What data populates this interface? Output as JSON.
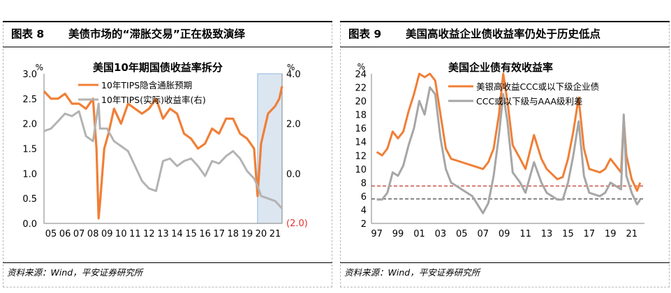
{
  "left": {
    "figure_no": "图表 8",
    "figure_title": "美债市场的“滞胀交易”正在极致演绎",
    "source": "资料来源：Wind，平安证券研究所",
    "chart_data": {
      "type": "line",
      "title": "美国10年期国债收益率拆分",
      "y_unit_left": "%",
      "y_unit_right": "%",
      "ylim_left": [
        0,
        3.0
      ],
      "ylim_right": [
        -2.0,
        4.0
      ],
      "y_ticks_left": [
        "0.0",
        "0.5",
        "1.0",
        "1.5",
        "2.0",
        "2.5",
        "3.0"
      ],
      "y_ticks_right": [
        "(2.0)",
        "0.0",
        "2.0",
        "4.0"
      ],
      "x_tick_labels": [
        "05",
        "06",
        "07",
        "08",
        "09",
        "10",
        "11",
        "12",
        "13",
        "14",
        "15",
        "16",
        "17",
        "18",
        "19",
        "20",
        "21"
      ],
      "legend": "top-center",
      "highlight_span": [
        2020.25,
        2022.0
      ],
      "series": [
        {
          "name": "10年TIPS隐含通胀预期",
          "axis": "left",
          "color": "#f07f36",
          "x": [
            2005.0,
            2005.5,
            2006.0,
            2006.5,
            2007.0,
            2007.5,
            2008.0,
            2008.5,
            2008.75,
            2008.9,
            2009.0,
            2009.3,
            2009.6,
            2010.0,
            2010.5,
            2011.0,
            2011.5,
            2012.0,
            2012.5,
            2013.0,
            2013.5,
            2014.0,
            2014.5,
            2015.0,
            2015.5,
            2016.0,
            2016.5,
            2017.0,
            2017.5,
            2018.0,
            2018.5,
            2019.0,
            2019.5,
            2020.0,
            2020.25,
            2020.5,
            2021.0,
            2021.5,
            2021.8,
            2022.0
          ],
          "values": [
            2.65,
            2.5,
            2.5,
            2.6,
            2.4,
            2.4,
            2.3,
            2.5,
            1.5,
            0.1,
            0.4,
            1.5,
            1.8,
            2.3,
            2.0,
            2.4,
            2.3,
            2.2,
            2.3,
            2.5,
            2.1,
            2.3,
            2.2,
            1.8,
            1.7,
            1.5,
            1.6,
            1.9,
            1.8,
            2.1,
            2.1,
            1.8,
            1.7,
            1.5,
            0.55,
            1.6,
            2.2,
            2.35,
            2.5,
            2.75
          ]
        },
        {
          "name": "10年TIPS(实际)收益率(右)",
          "axis": "right",
          "color": "#b3b3b3",
          "x": [
            2005.0,
            2005.5,
            2006.0,
            2006.5,
            2007.0,
            2007.5,
            2008.0,
            2008.5,
            2008.9,
            2009.0,
            2009.5,
            2010.0,
            2010.5,
            2011.0,
            2011.5,
            2012.0,
            2012.5,
            2013.0,
            2013.5,
            2014.0,
            2014.5,
            2015.0,
            2015.5,
            2016.0,
            2016.5,
            2017.0,
            2017.5,
            2018.0,
            2018.5,
            2019.0,
            2019.5,
            2020.0,
            2020.25,
            2020.5,
            2021.0,
            2021.5,
            2022.0
          ],
          "values": [
            1.7,
            1.8,
            2.1,
            2.4,
            2.3,
            2.5,
            1.5,
            1.3,
            2.8,
            1.8,
            1.8,
            1.3,
            1.1,
            0.9,
            0.3,
            -0.3,
            -0.6,
            -0.7,
            0.5,
            0.6,
            0.3,
            0.5,
            0.6,
            0.3,
            -0.1,
            0.5,
            0.4,
            0.7,
            0.9,
            0.6,
            0.1,
            -0.2,
            -0.5,
            -0.9,
            -1.0,
            -1.1,
            -1.4
          ]
        }
      ]
    }
  },
  "right": {
    "figure_no": "图表 9",
    "figure_title": "美国高收益企业债收益率仍处于历史低点",
    "source": "资料来源：Wind，平安证券研究所",
    "chart_data": {
      "type": "line",
      "title": "美国企业债有效收益率",
      "y_unit": "%",
      "ylim": [
        2,
        24
      ],
      "y_ticks": [
        "2",
        "4",
        "6",
        "8",
        "10",
        "12",
        "14",
        "16",
        "18",
        "20",
        "22",
        "24"
      ],
      "x_tick_labels": [
        "97",
        "99",
        "01",
        "03",
        "05",
        "07",
        "09",
        "11",
        "13",
        "15",
        "17",
        "19",
        "21"
      ],
      "legend": "top-center",
      "reference_lines": [
        {
          "value": 7.5,
          "color": "#c0392b"
        },
        {
          "value": 5.6,
          "color": "#555555"
        }
      ],
      "series": [
        {
          "name": "美银高收益CCC或以下级企业债",
          "color": "#f07f36",
          "x": [
            1997.0,
            1997.5,
            1998.0,
            1998.5,
            1999.0,
            1999.5,
            2000.0,
            2000.5,
            2001.0,
            2001.5,
            2002.0,
            2002.5,
            2003.0,
            2003.5,
            2004.0,
            2005.0,
            2006.0,
            2007.0,
            2007.5,
            2008.0,
            2008.5,
            2008.9,
            2009.3,
            2009.8,
            2010.5,
            2011.0,
            2011.8,
            2012.5,
            2013.0,
            2014.0,
            2014.5,
            2015.0,
            2015.5,
            2016.0,
            2016.5,
            2017.0,
            2018.0,
            2018.5,
            2019.0,
            2020.0,
            2020.25,
            2020.5,
            2021.0,
            2021.5,
            2021.8
          ],
          "values": [
            12.5,
            12.0,
            13.0,
            15.5,
            14.5,
            15.5,
            18.5,
            21.0,
            24.0,
            23.5,
            24.0,
            23.0,
            18.0,
            13.0,
            11.5,
            11.0,
            10.5,
            10.0,
            11.0,
            13.0,
            18.0,
            24.0,
            20.0,
            13.5,
            11.5,
            10.0,
            15.0,
            11.5,
            10.0,
            8.5,
            8.8,
            11.5,
            15.5,
            20.5,
            13.0,
            10.0,
            9.5,
            10.0,
            11.5,
            9.5,
            17.5,
            12.0,
            8.5,
            6.8,
            8.0
          ]
        },
        {
          "name": "CCC或以下级与AAA级利差",
          "color": "#a6a6a6",
          "x": [
            1997.0,
            1997.5,
            1998.0,
            1998.5,
            1999.0,
            1999.5,
            2000.0,
            2000.5,
            2001.0,
            2001.5,
            2002.0,
            2002.5,
            2003.0,
            2003.5,
            2004.0,
            2005.0,
            2006.0,
            2007.0,
            2007.5,
            2008.0,
            2008.5,
            2008.9,
            2009.3,
            2009.8,
            2010.5,
            2011.0,
            2011.8,
            2012.5,
            2013.0,
            2014.0,
            2014.5,
            2015.0,
            2015.5,
            2016.0,
            2016.5,
            2017.0,
            2018.0,
            2018.5,
            2019.0,
            2020.0,
            2020.25,
            2020.5,
            2021.0,
            2021.5,
            2021.8
          ],
          "values": [
            5.5,
            5.5,
            6.5,
            9.5,
            9.0,
            10.5,
            13.5,
            16.0,
            20.0,
            18.0,
            22.0,
            21.0,
            14.5,
            10.0,
            8.0,
            7.0,
            6.0,
            3.5,
            5.0,
            9.0,
            15.0,
            21.0,
            17.0,
            9.5,
            8.0,
            6.5,
            11.0,
            8.0,
            6.5,
            5.5,
            5.5,
            8.0,
            12.0,
            17.0,
            9.0,
            6.5,
            6.0,
            6.5,
            8.0,
            7.0,
            18.0,
            9.0,
            6.5,
            4.8,
            5.5
          ]
        }
      ]
    }
  }
}
